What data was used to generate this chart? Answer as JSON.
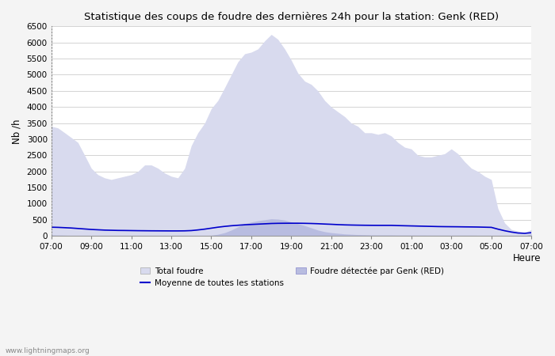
{
  "title": "Statistique des coups de foudre des dernières 24h pour la station: Genk (RED)",
  "xlabel": "Heure",
  "ylabel": "Nb /h",
  "xlim": [
    0,
    24
  ],
  "ylim": [
    0,
    6500
  ],
  "yticks": [
    0,
    500,
    1000,
    1500,
    2000,
    2500,
    3000,
    3500,
    4000,
    4500,
    5000,
    5500,
    6000,
    6500
  ],
  "xtick_labels": [
    "07:00",
    "09:00",
    "11:00",
    "13:00",
    "15:00",
    "17:00",
    "19:00",
    "21:00",
    "23:00",
    "01:00",
    "03:00",
    "05:00",
    "07:00"
  ],
  "background_color": "#f4f4f4",
  "plot_bg_color": "#ffffff",
  "total_foudre_color": "#d8daee",
  "total_foudre_edge": "#d8daee",
  "local_foudre_color": "#b8bce0",
  "local_foudre_edge": "#b8bce0",
  "mean_line_color": "#0000cc",
  "watermark": "www.lightningmaps.org",
  "legend_items": [
    "Total foudre",
    "Moyenne de toutes les stations",
    "Foudre détectée par Genk (RED)"
  ],
  "x_hours": [
    0,
    0.33,
    0.67,
    1,
    1.33,
    1.67,
    2,
    2.33,
    2.67,
    3,
    3.33,
    3.67,
    4,
    4.33,
    4.67,
    5,
    5.33,
    5.67,
    6,
    6.33,
    6.67,
    7,
    7.33,
    7.67,
    8,
    8.33,
    8.67,
    9,
    9.33,
    9.67,
    10,
    10.33,
    10.67,
    11,
    11.33,
    11.67,
    12,
    12.33,
    12.67,
    13,
    13.33,
    13.67,
    14,
    14.33,
    14.67,
    15,
    15.33,
    15.67,
    16,
    16.33,
    16.67,
    17,
    17.33,
    17.67,
    18,
    18.33,
    18.67,
    19,
    19.33,
    19.67,
    20,
    20.33,
    20.67,
    21,
    21.33,
    21.67,
    22,
    22.33,
    22.67,
    23,
    23.33,
    23.67,
    24
  ],
  "total_foudre": [
    3400,
    3350,
    3200,
    3050,
    2900,
    2500,
    2100,
    1900,
    1800,
    1750,
    1800,
    1850,
    1900,
    2000,
    2200,
    2200,
    2100,
    1950,
    1850,
    1800,
    2100,
    2800,
    3200,
    3500,
    3950,
    4200,
    4600,
    5000,
    5400,
    5650,
    5700,
    5800,
    6050,
    6250,
    6100,
    5800,
    5450,
    5050,
    4800,
    4700,
    4500,
    4200,
    4000,
    3850,
    3700,
    3500,
    3400,
    3200,
    3200,
    3150,
    3200,
    3100,
    2900,
    2750,
    2700,
    2500,
    2450,
    2450,
    2500,
    2550,
    2700,
    2550,
    2300,
    2100,
    2000,
    1850,
    1750,
    850,
    400,
    200,
    150,
    100,
    200
  ],
  "local_foudre": [
    30,
    25,
    20,
    15,
    10,
    8,
    5,
    5,
    5,
    5,
    5,
    5,
    5,
    5,
    5,
    5,
    5,
    5,
    5,
    5,
    5,
    5,
    5,
    10,
    20,
    50,
    100,
    180,
    280,
    380,
    430,
    470,
    500,
    530,
    520,
    490,
    430,
    380,
    320,
    250,
    180,
    130,
    100,
    80,
    60,
    50,
    40,
    35,
    30,
    28,
    28,
    28,
    25,
    25,
    25,
    22,
    22,
    20,
    20,
    20,
    20,
    20,
    20,
    20,
    18,
    18,
    18,
    10,
    5,
    5,
    5,
    5,
    60
  ],
  "mean_line": [
    270,
    265,
    255,
    245,
    230,
    215,
    200,
    190,
    180,
    175,
    170,
    168,
    165,
    162,
    160,
    158,
    157,
    156,
    155,
    155,
    157,
    165,
    185,
    210,
    240,
    270,
    295,
    315,
    330,
    345,
    355,
    365,
    375,
    385,
    390,
    392,
    393,
    393,
    390,
    385,
    378,
    368,
    360,
    350,
    342,
    337,
    333,
    330,
    328,
    327,
    327,
    327,
    320,
    315,
    310,
    305,
    300,
    295,
    290,
    287,
    285,
    283,
    280,
    278,
    275,
    270,
    265,
    210,
    160,
    120,
    90,
    80,
    100
  ]
}
